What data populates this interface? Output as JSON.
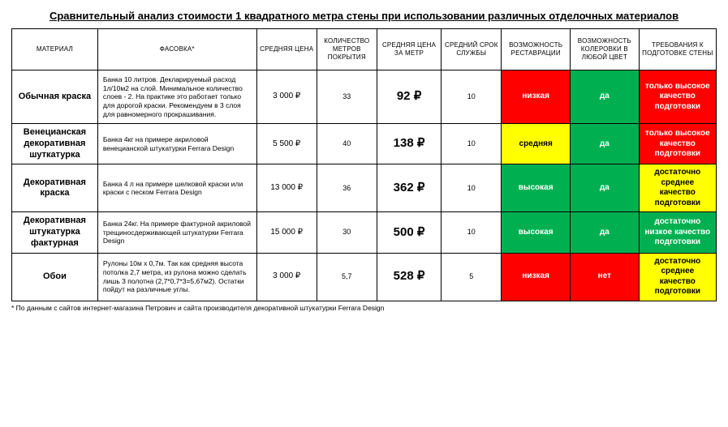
{
  "title": "Сравнительный анализ стоимости 1 квадратного метра стены при использовании различных отделочных материалов",
  "colors": {
    "low": "#ff0000",
    "medium": "#ffff00",
    "high": "#00b050",
    "yes": "#00b050",
    "no": "#ff0000",
    "prep_high_only": "#ff0000",
    "prep_medium": "#ffff00",
    "prep_low": "#00b050",
    "text_on_red": "#ffffff",
    "text_on_green": "#ffffff",
    "text_on_yellow": "#000000"
  },
  "headers": [
    "МАТЕРИАЛ",
    "ФАСОВКА*",
    "СРЕДНЯЯ ЦЕНА",
    "КОЛИЧЕСТВО МЕТРОВ ПОКРЫТИЯ",
    "СРЕДНЯЯ ЦЕНА ЗА МЕТР",
    "СРЕДНИЙ СРОК СЛУЖБЫ",
    "ВОЗМОЖНОСТЬ РЕСТАВРАЦИИ",
    "ВОЗМОЖНОСТЬ КОЛЕРОВКИ В ЛЮБОЙ ЦВЕТ",
    "ТРЕБОВАНИЯ К ПОДГОТОВКЕ СТЕНЫ"
  ],
  "rows": [
    {
      "material": "Обычная краска",
      "pack": "Банка 10 литров. Декларируемый расход 1л/10м2 на слой. Минимальное количество слоев - 2. На практике это работает только для дорогой краски. Рекомендуем в 3 слоя для равномерного прокрашивания.",
      "price": "3 000 ₽",
      "coverage": "33",
      "ppm": "92 ₽",
      "life": "10",
      "restore": {
        "text": "низкая",
        "bg": "low",
        "fg": "text_on_red"
      },
      "tint": {
        "text": "да",
        "bg": "yes",
        "fg": "text_on_green"
      },
      "prep": {
        "text": "только высокое качество подготовки",
        "bg": "prep_high_only",
        "fg": "text_on_red"
      }
    },
    {
      "material": "Венецианская декоративная шуткатурка",
      "pack": "Банка 4кг на примере акриловой венецианской штукатурки Ferrara Design",
      "price": "5 500 ₽",
      "coverage": "40",
      "ppm": "138 ₽",
      "life": "10",
      "restore": {
        "text": "средняя",
        "bg": "medium",
        "fg": "text_on_yellow"
      },
      "tint": {
        "text": "да",
        "bg": "yes",
        "fg": "text_on_green"
      },
      "prep": {
        "text": "только высокое качество подготовки",
        "bg": "prep_high_only",
        "fg": "text_on_red"
      }
    },
    {
      "material": "Декоративная краска",
      "pack": "Банка 4 л на примере шелковой краски или краски с песком Ferrara Design",
      "price": "13 000 ₽",
      "coverage": "36",
      "ppm": "362 ₽",
      "life": "10",
      "restore": {
        "text": "высокая",
        "bg": "high",
        "fg": "text_on_green"
      },
      "tint": {
        "text": "да",
        "bg": "yes",
        "fg": "text_on_green"
      },
      "prep": {
        "text": "достаточно среднее качество подготовки",
        "bg": "prep_medium",
        "fg": "text_on_yellow"
      }
    },
    {
      "material": "Декоративная штукатурка фактурная",
      "pack": "Банка 24кг. На примере фактурной акриловой трещиносдерживающей штукатурки Ferrara Design",
      "price": "15 000 ₽",
      "coverage": "30",
      "ppm": "500 ₽",
      "life": "10",
      "restore": {
        "text": "высокая",
        "bg": "high",
        "fg": "text_on_green"
      },
      "tint": {
        "text": "да",
        "bg": "yes",
        "fg": "text_on_green"
      },
      "prep": {
        "text": "достаточно низкое качество подготовки",
        "bg": "prep_low",
        "fg": "text_on_green"
      }
    },
    {
      "material": "Обои",
      "pack": "Рулоны 10м х 0,7м. Так как средняя высота потолка 2,7 метра, из рулона можно сделать лишь 3 полотна (2,7*0,7*3=5,67м2). Остатки пойдут на различные углы.",
      "price": "3 000 ₽",
      "coverage": "5,7",
      "ppm": "528 ₽",
      "life": "5",
      "restore": {
        "text": "низкая",
        "bg": "low",
        "fg": "text_on_red"
      },
      "tint": {
        "text": "нет",
        "bg": "no",
        "fg": "text_on_red"
      },
      "prep": {
        "text": "достаточно среднее качество подготовки",
        "bg": "prep_medium",
        "fg": "text_on_yellow"
      }
    }
  ],
  "footnote": "* По данным с сайтов интернет-магазина Петрович и сайта производителя декоративной штукатурки Ferrara Design"
}
